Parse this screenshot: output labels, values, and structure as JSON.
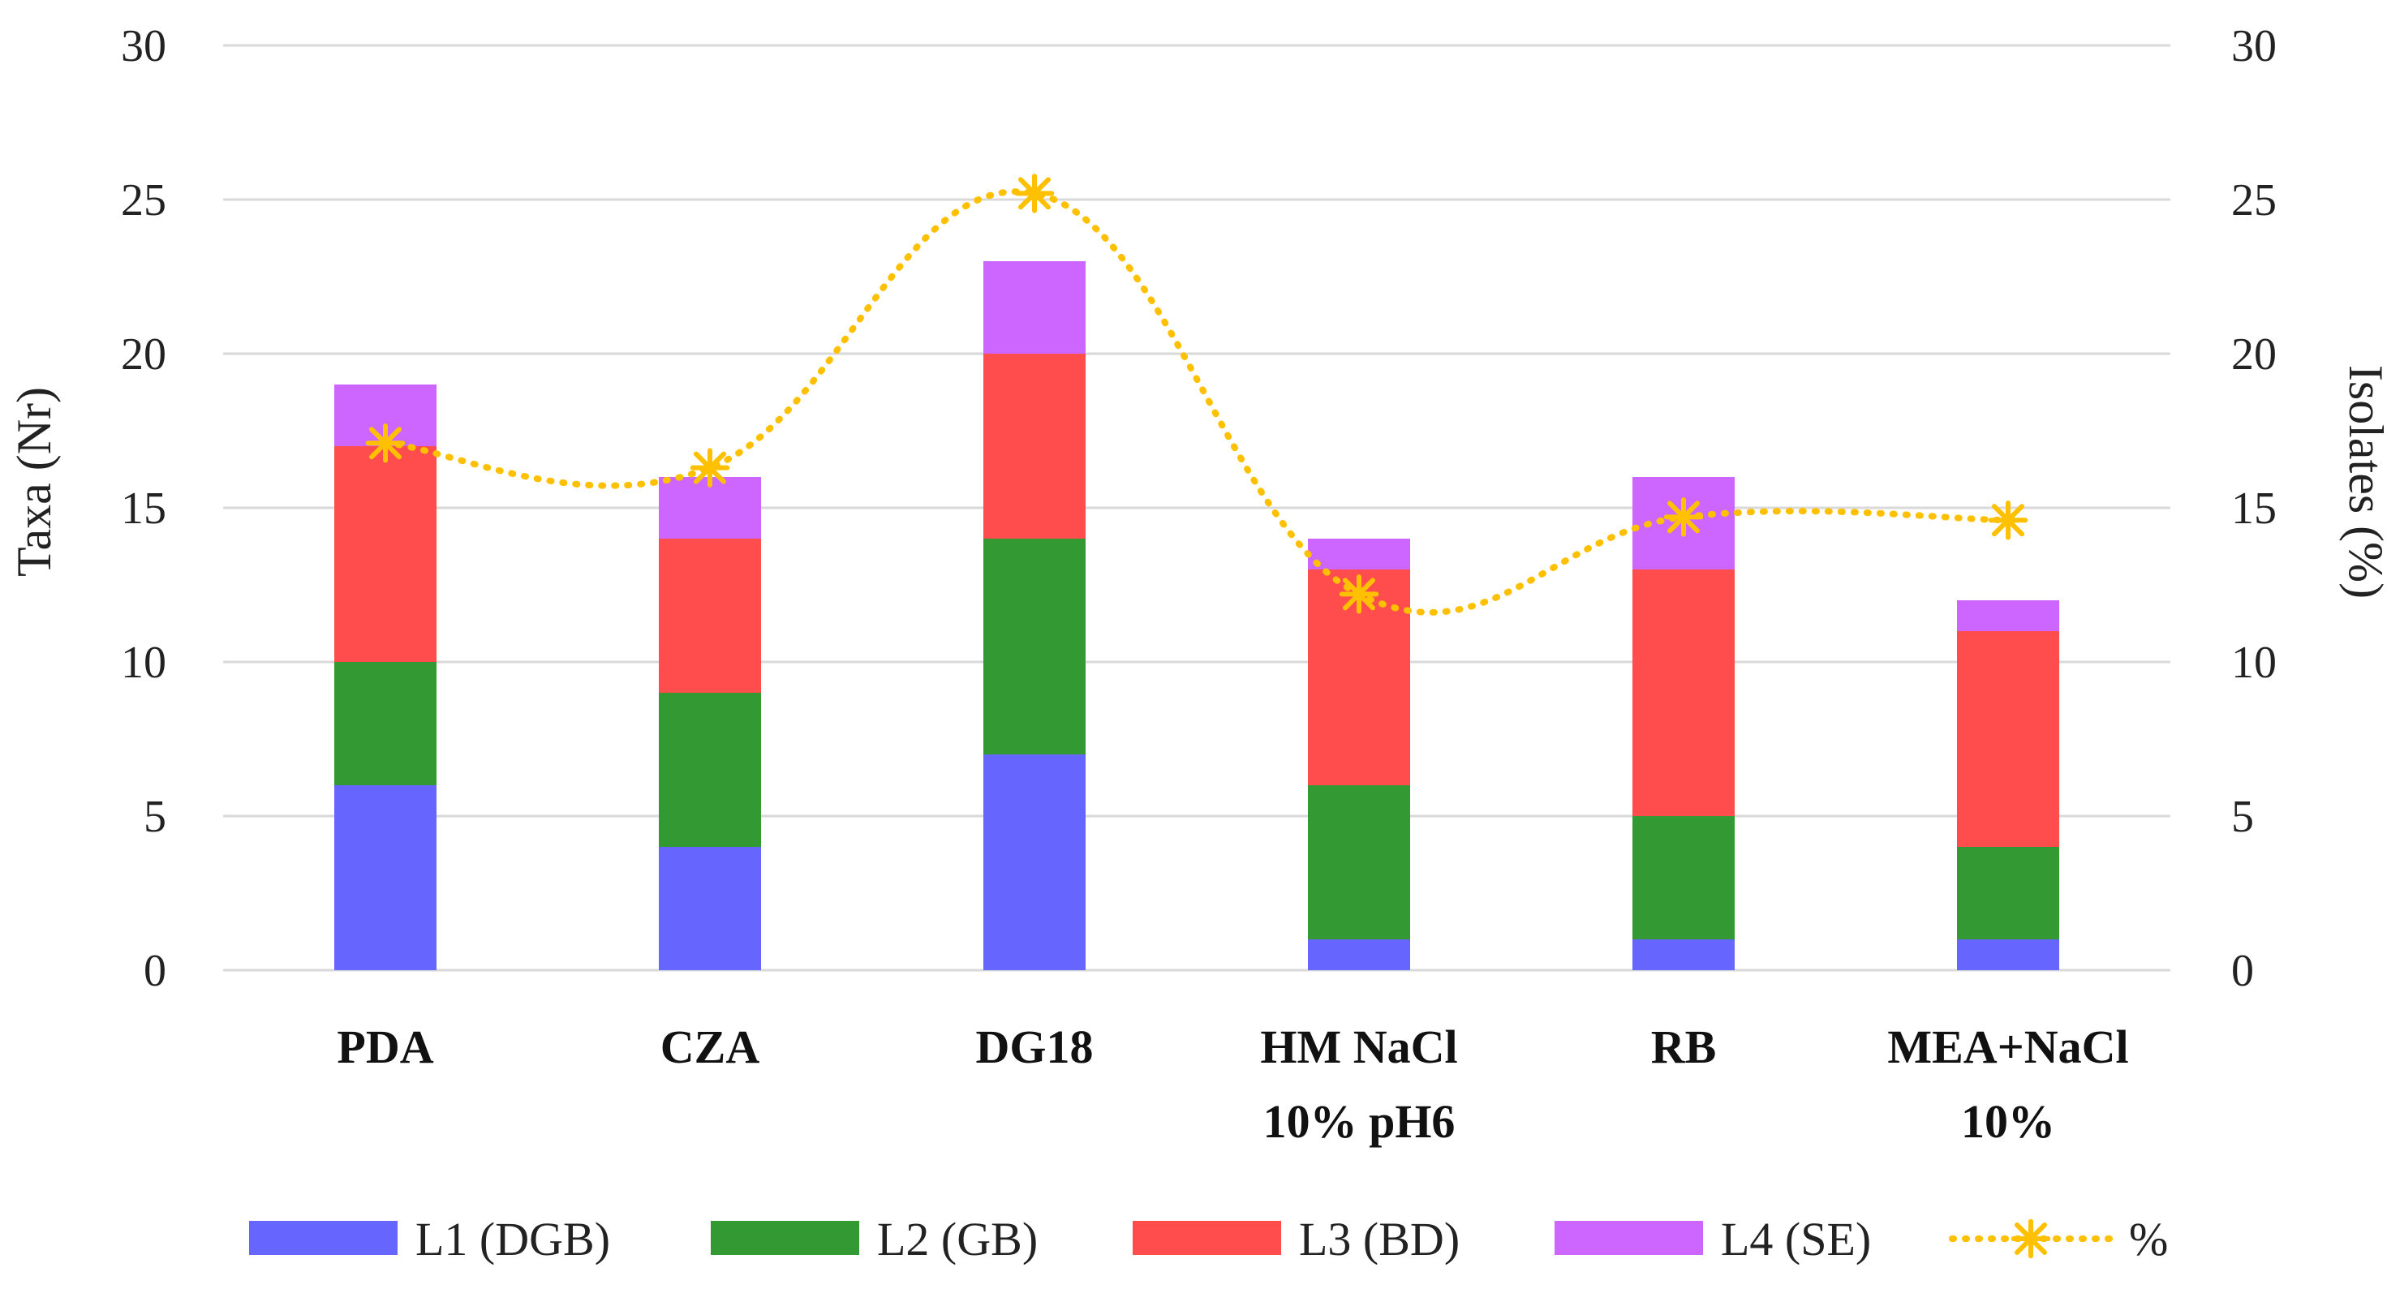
{
  "chart_data": {
    "type": "bar",
    "stacked": true,
    "categories": [
      [
        "PDA"
      ],
      [
        "CZA"
      ],
      [
        "DG18"
      ],
      [
        "HM NaCl",
        "10% pH6"
      ],
      [
        "RB"
      ],
      [
        "MEA+NaCl",
        "10%"
      ]
    ],
    "series": [
      {
        "name": "L1 (DGB)",
        "color": "#6666ff",
        "values": [
          6,
          4,
          7,
          1,
          1,
          1
        ]
      },
      {
        "name": "L2 (GB)",
        "color": "#339933",
        "values": [
          4,
          5,
          7,
          5,
          4,
          3
        ]
      },
      {
        "name": "L3 (BD)",
        "color": "#ff4d4d",
        "values": [
          7,
          5,
          6,
          7,
          8,
          7
        ]
      },
      {
        "name": "L4 (SE)",
        "color": "#cc66ff",
        "values": [
          2,
          2,
          3,
          1,
          3,
          1
        ]
      }
    ],
    "line_series": {
      "name": "%",
      "color": "#ffc000",
      "axis": "right",
      "values": [
        17.1,
        16.3,
        25.2,
        12.2,
        14.7,
        14.6
      ]
    },
    "ylabel": "Taxa (Nr)",
    "y2label": "Isolates (%)",
    "ylim": [
      0,
      30
    ],
    "y2lim": [
      0,
      30
    ],
    "yticks": [
      "0",
      "5",
      "10",
      "15",
      "20",
      "25",
      "30"
    ],
    "y2ticks": [
      "0",
      "5",
      "10",
      "15",
      "20",
      "25",
      "30"
    ],
    "grid": true,
    "legend_position": "bottom"
  }
}
